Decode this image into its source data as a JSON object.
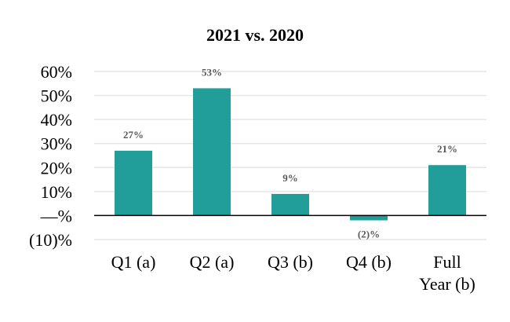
{
  "chart_data": {
    "type": "bar",
    "title": "2021 vs. 2020",
    "categories": [
      [
        "Q1 (a)"
      ],
      [
        "Q2 (a)"
      ],
      [
        "Q3 (b)"
      ],
      [
        "Q4 (b)"
      ],
      [
        "Full",
        "Year (b)"
      ]
    ],
    "values": [
      27,
      53,
      9,
      -2,
      21
    ],
    "data_labels": [
      "27%",
      "53%",
      "9%",
      "(2)%",
      "21%"
    ],
    "ylim": [
      -10,
      60
    ],
    "yticks": [
      60,
      50,
      40,
      30,
      20,
      10,
      0,
      -10
    ],
    "ytick_labels": [
      "60%",
      "50%",
      "40%",
      "30%",
      "20%",
      "10%",
      "—%",
      "(10)%"
    ],
    "grid": true,
    "legend": "none",
    "colors": {
      "bar": "#229e9a",
      "zero_line": "#000000",
      "grid": "#e6e6e6",
      "data_label": "#595959"
    }
  }
}
